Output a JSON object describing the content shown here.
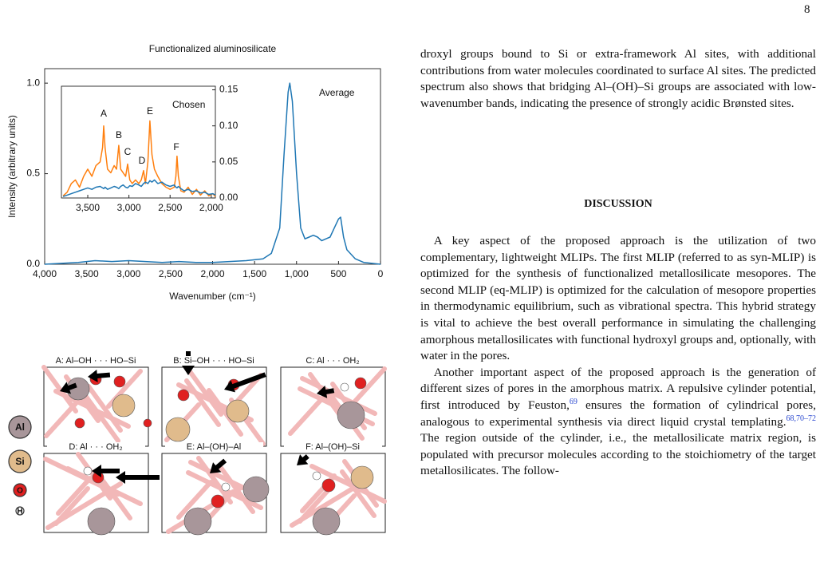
{
  "page_number": "8",
  "chart_data": [
    {
      "type": "line",
      "title": "Functionalized aluminosilicate",
      "x_label": "Wavenumber (cm⁻¹)",
      "y_label": "Intensity (arbitrary units)",
      "x": [
        4000,
        3800,
        3600,
        3400,
        3200,
        3000,
        2800,
        2600,
        2400,
        2200,
        2000,
        1800,
        1600,
        1400,
        1300,
        1200,
        1150,
        1100,
        1080,
        1050,
        1000,
        950,
        900,
        850,
        800,
        750,
        700,
        650,
        600,
        550,
        500,
        475,
        440,
        400,
        300,
        200,
        100,
        0
      ],
      "series": [
        {
          "name": "Average",
          "color": "#1f77b4",
          "values": [
            0,
            0.005,
            0.01,
            0.02,
            0.015,
            0.02,
            0.015,
            0.01,
            0.015,
            0.01,
            0.01,
            0.015,
            0.02,
            0.03,
            0.06,
            0.2,
            0.6,
            0.95,
            1.0,
            0.9,
            0.5,
            0.2,
            0.14,
            0.15,
            0.16,
            0.15,
            0.13,
            0.14,
            0.15,
            0.2,
            0.25,
            0.26,
            0.15,
            0.08,
            0.03,
            0.01,
            0.005,
            0
          ]
        }
      ],
      "xlim": [
        4000,
        0
      ],
      "ylim": [
        0,
        1.08
      ],
      "xticks": [
        {
          "value": 4000,
          "label": "4,000"
        },
        {
          "value": 3500,
          "label": "3,500"
        },
        {
          "value": 3000,
          "label": "3,000"
        },
        {
          "value": 2500,
          "label": "2,500"
        },
        {
          "value": 2000,
          "label": "2,000"
        },
        {
          "value": 1500,
          "label": "1,500"
        },
        {
          "value": 1000,
          "label": "1,000"
        },
        500,
        0
      ],
      "yticks": [
        {
          "value": 0,
          "label": "0.0"
        },
        {
          "value": 0.5,
          "label": "0.5"
        },
        {
          "value": 1.0,
          "label": "1.0"
        }
      ],
      "y_axis": "left"
    },
    {
      "type": "line",
      "x": [
        3800,
        3750,
        3700,
        3650,
        3600,
        3550,
        3500,
        3450,
        3400,
        3350,
        3320,
        3306,
        3290,
        3260,
        3220,
        3180,
        3150,
        3123,
        3100,
        3070,
        3040,
        3016,
        2990,
        2960,
        2920,
        2880,
        2850,
        2822,
        2800,
        2770,
        2745,
        2720,
        2690,
        2650,
        2600,
        2550,
        2500,
        2450,
        2430,
        2416,
        2400,
        2370,
        2330,
        2280,
        2230,
        2180,
        2130,
        2080,
        2030,
        1980,
        1950
      ],
      "series": [
        {
          "name": "Chosen",
          "color": "#ff7f0e",
          "values": [
            0.003,
            0.008,
            0.02,
            0.025,
            0.015,
            0.03,
            0.04,
            0.03,
            0.045,
            0.05,
            0.07,
            0.1,
            0.07,
            0.04,
            0.035,
            0.045,
            0.04,
            0.073,
            0.04,
            0.035,
            0.03,
            0.047,
            0.025,
            0.02,
            0.025,
            0.02,
            0.025,
            0.038,
            0.02,
            0.05,
            0.107,
            0.06,
            0.04,
            0.03,
            0.02,
            0.015,
            0.012,
            0.015,
            0.03,
            0.058,
            0.03,
            0.01,
            0.008,
            0.015,
            0.005,
            0.012,
            0.004,
            0.01,
            0.003,
            0.006,
            0.002
          ]
        },
        {
          "color": "#1f77b4",
          "values": [
            0.002,
            0.004,
            0.006,
            0.008,
            0.01,
            0.012,
            0.014,
            0.012,
            0.015,
            0.016,
            0.014,
            0.013,
            0.015,
            0.012,
            0.014,
            0.016,
            0.015,
            0.013,
            0.016,
            0.018,
            0.015,
            0.014,
            0.017,
            0.016,
            0.02,
            0.018,
            0.016,
            0.02,
            0.022,
            0.02,
            0.024,
            0.022,
            0.025,
            0.02,
            0.022,
            0.018,
            0.016,
            0.018,
            0.015,
            0.014,
            0.016,
            0.013,
            0.01,
            0.012,
            0.009,
            0.01,
            0.007,
            0.008,
            0.005,
            0.006,
            0.004
          ]
        }
      ],
      "peak_labels": [
        "A",
        "B",
        "C",
        "D",
        "E",
        "F"
      ],
      "xlim": [
        3820,
        1950
      ],
      "ylim": [
        0,
        0.155
      ],
      "xticks": [
        {
          "value": 3500,
          "label": "3,500"
        },
        {
          "value": 3000,
          "label": "3,000"
        },
        {
          "value": 2500,
          "label": "2,500"
        },
        {
          "value": 2000,
          "label": "2,000"
        }
      ],
      "yticks": [
        {
          "value": 0,
          "label": "0.00"
        },
        {
          "value": 0.05,
          "label": "0.05"
        },
        {
          "value": 0.1,
          "label": "0.10"
        },
        {
          "value": 0.15,
          "label": "0.15"
        }
      ],
      "y_axis": "right"
    }
  ],
  "figure": {
    "panels": [
      "A: Al–OH · · · HO–Si",
      "B: Si–OH · · · HO–Si",
      "C: Al · · · OH₂",
      "D: Al · · · OH₂",
      "E: Al–(OH)–Al",
      "F: Al–(OH)–Si"
    ],
    "atoms": [
      "Al",
      "Si",
      "O",
      "H"
    ]
  },
  "text": {
    "paragraph_1": "droxyl groups bound to Si or extra-framework Al sites, with additional contributions from water molecules coordinated to surface Al sites. The predicted spectrum also shows that bridging Al–(OH)–Si groups are associated with low-wavenumber bands, indicating the presence of strongly acidic Brønsted sites.",
    "heading": "DISCUSSION",
    "paragraph_2": "A key aspect of the proposed approach is the utilization of two complementary, lightweight MLIPs. The first MLIP (referred to as syn-MLIP) is optimized for the synthesis of functionalized metallosilicate mesopores. The second MLIP (eq-MLIP) is optimized for the calculation of mesopore properties in thermodynamic equilibrium, such as vibrational spectra. This hybrid strategy is vital to achieve the best overall performance in simulating the challenging amorphous metallosilicates with functional hydroxyl groups and, optionally, with water in the pores.",
    "paragraph_3": {
      "text_1": "Another important aspect of the proposed approach is the generation of different sizes of pores in the amorphous matrix. A repulsive cylinder potential, first introduced by Feuston,",
      "cite_1": "69",
      "text_2": " ensures the formation of cylindrical pores, analogous to experimental synthesis via direct liquid crystal templating.",
      "cite_2": "68,70–72",
      "text_3": " The region outside of the cylinder, i.e., the metallosilicate matrix region, is populated with precursor molecules according to the stoichiometry of the target metallosilicates. The follow-"
    }
  }
}
